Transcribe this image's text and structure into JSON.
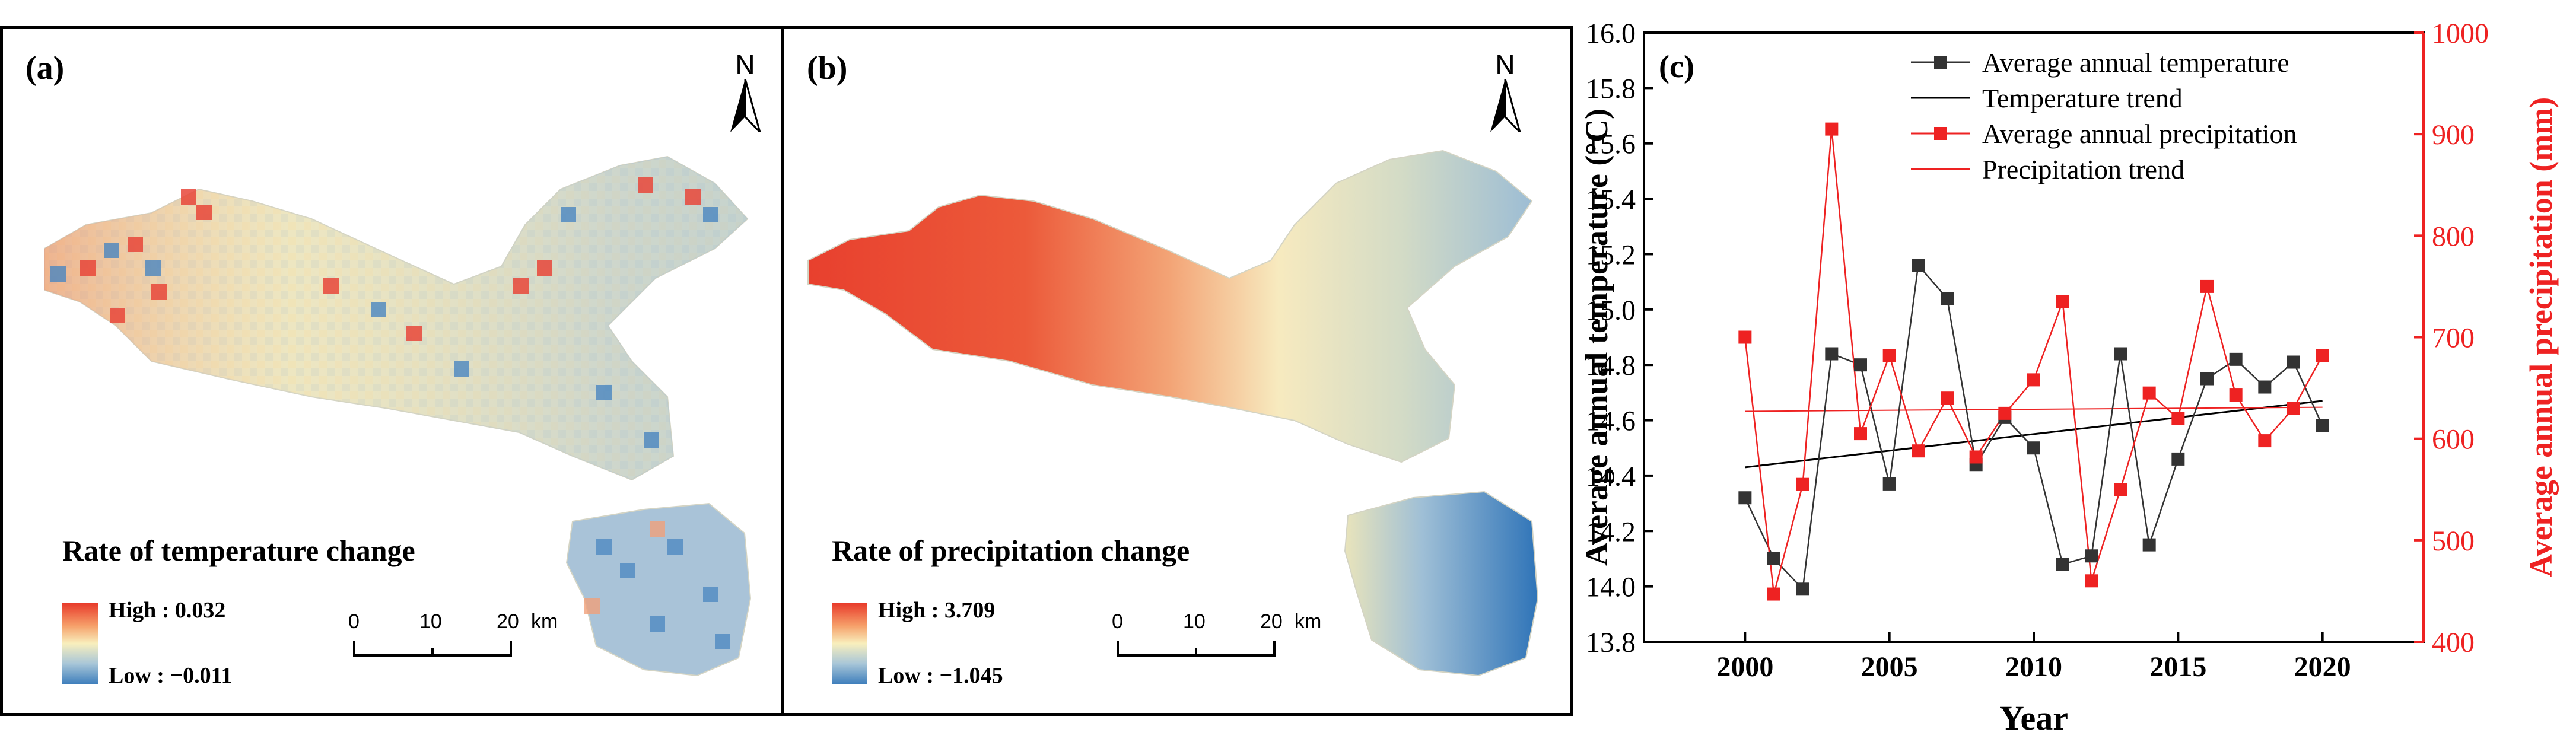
{
  "panel_a": {
    "label": "(a)",
    "north": "N",
    "legend_title": "Rate of temperature change",
    "high_label": "High : 0.032",
    "low_label": "Low : −0.011",
    "scale": {
      "t0": "0",
      "t1": "10",
      "t2": "20",
      "unit": "km"
    }
  },
  "panel_b": {
    "label": "(b)",
    "north": "N",
    "legend_title": "Rate of precipitation change",
    "high_label": "High : 3.709",
    "low_label": "Low : −1.045",
    "scale": {
      "t0": "0",
      "t1": "10",
      "t2": "20",
      "unit": "km"
    }
  },
  "chart_data": {
    "type": "line",
    "label": "(c)",
    "xlabel": "Year",
    "ylabel_left": "Average annual temperature (°C)",
    "ylabel_right": "Average annual precipitation (mm)",
    "xlim": [
      1996.5,
      2023.5
    ],
    "xticks": [
      2000,
      2005,
      2010,
      2015,
      2020
    ],
    "ylim_left": [
      13.8,
      16.0
    ],
    "yticks_left": [
      "13.8",
      "14.0",
      "14.2",
      "14.4",
      "14.6",
      "14.8",
      "15.0",
      "15.2",
      "15.4",
      "15.6",
      "15.8",
      "16.0"
    ],
    "ylim_right": [
      400,
      1000
    ],
    "yticks_right": [
      "400",
      "500",
      "600",
      "700",
      "800",
      "900",
      "1000"
    ],
    "colors": {
      "temperature": "#333333",
      "precipitation": "#ee2222",
      "right_axis": "#ee2222"
    },
    "legend": [
      "Average annual temperature",
      "Temperature trend",
      "Average annual precipitation",
      "Precipitation trend"
    ],
    "x": [
      2000,
      2001,
      2002,
      2003,
      2004,
      2005,
      2006,
      2007,
      2008,
      2009,
      2010,
      2011,
      2012,
      2013,
      2014,
      2015,
      2016,
      2017,
      2018,
      2019,
      2020
    ],
    "temperature": [
      14.32,
      14.1,
      13.99,
      14.84,
      14.8,
      14.37,
      15.16,
      15.04,
      14.44,
      14.61,
      14.5,
      14.08,
      14.11,
      14.84,
      14.15,
      14.46,
      14.75,
      14.82,
      14.72,
      14.81,
      14.58
    ],
    "temperature_trend": [
      14.43,
      14.67
    ],
    "precipitation": [
      700,
      447,
      555,
      905,
      605,
      682,
      588,
      640,
      582,
      625,
      658,
      735,
      460,
      550,
      645,
      620,
      750,
      643,
      598,
      630,
      682
    ],
    "precipitation_trend": [
      627,
      631
    ]
  }
}
